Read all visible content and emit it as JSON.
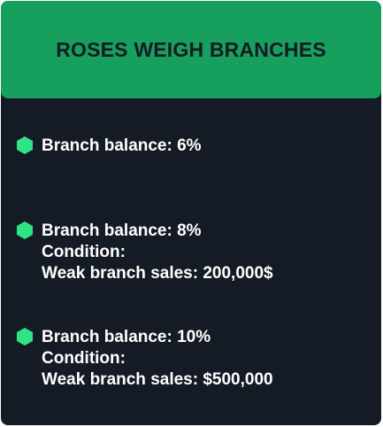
{
  "header": {
    "title": "ROSES WEIGH BRANCHES"
  },
  "colors": {
    "header_bg": "#17a05d",
    "card_bg": "#151b24",
    "bullet": "#2fe486",
    "text": "#ffffff"
  },
  "items": [
    {
      "icon": "hexagon-bullet-icon",
      "lines": [
        "Branch balance: 6%"
      ]
    },
    {
      "icon": "hexagon-bullet-icon",
      "lines": [
        "Branch balance: 8%",
        "Condition:",
        "Weak branch sales: 200,000$"
      ]
    },
    {
      "icon": "hexagon-bullet-icon",
      "lines": [
        "Branch balance: 10%",
        "Condition:",
        "Weak branch sales: $500,000"
      ]
    }
  ]
}
